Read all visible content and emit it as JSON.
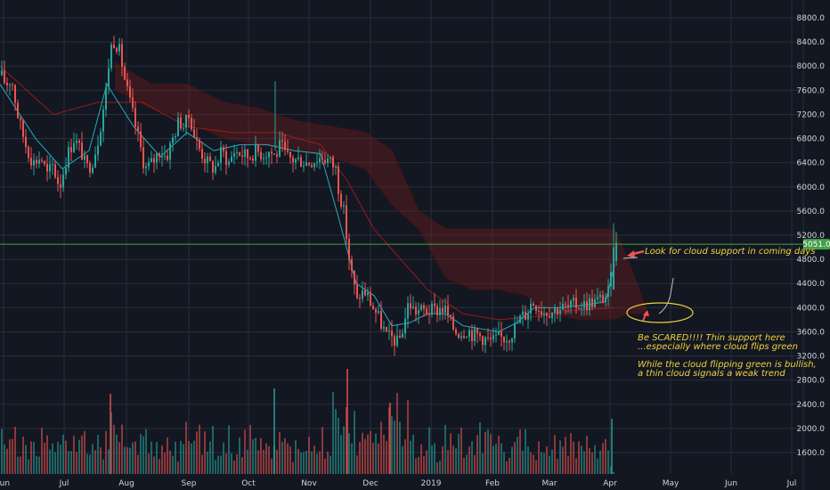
{
  "chart_data": {
    "type": "candlestick",
    "title": "",
    "grid": true,
    "colors": {
      "background": "#131722",
      "grid": "#2a2e39",
      "up": "#26a69a",
      "down": "#ef5350",
      "conversion_line": "#26c6da",
      "base_line": "#b71c1c",
      "cloud_bearish": "#7f1d1d",
      "cloud_bullish": "#1b5e20",
      "price_line": "#43a047",
      "annotation": "#f0d23c",
      "arrow": "#ef5350"
    },
    "y_axis": {
      "ticks": [
        "8800.0",
        "8400.0",
        "8000.0",
        "7600.0",
        "7200.0",
        "6800.0",
        "6400.0",
        "6000.0",
        "5600.0",
        "5200.0",
        "4800.0",
        "4400.0",
        "4000.0",
        "3600.0",
        "3200.0",
        "2800.0",
        "2400.0",
        "2000.0",
        "1600.0"
      ],
      "range": [
        1350,
        9050
      ]
    },
    "x_axis": {
      "labels": [
        "Jun",
        "Jul",
        "Aug",
        "Sep",
        "Oct",
        "Nov",
        "Dec",
        "2019",
        "Feb",
        "Mar",
        "Apr",
        "May",
        "Jun",
        "Jul"
      ]
    },
    "current_price": {
      "label": "5051.0",
      "value": 5051
    },
    "price_path": [
      [
        0,
        7850
      ],
      [
        6,
        7700
      ],
      [
        12,
        7800
      ],
      [
        20,
        7100
      ],
      [
        28,
        6700
      ],
      [
        36,
        6400
      ],
      [
        45,
        6500
      ],
      [
        52,
        6200
      ],
      [
        58,
        6350
      ],
      [
        66,
        6000
      ],
      [
        74,
        6500
      ],
      [
        82,
        6800
      ],
      [
        90,
        6600
      ],
      [
        96,
        6300
      ],
      [
        102,
        6400
      ],
      [
        108,
        6700
      ],
      [
        114,
        7200
      ],
      [
        118,
        7600
      ],
      [
        123,
        8300
      ],
      [
        128,
        8450
      ],
      [
        134,
        8200
      ],
      [
        140,
        7700
      ],
      [
        148,
        7200
      ],
      [
        156,
        6700
      ],
      [
        162,
        6300
      ],
      [
        170,
        6400
      ],
      [
        178,
        6600
      ],
      [
        186,
        6500
      ],
      [
        194,
        6850
      ],
      [
        200,
        7100
      ],
      [
        206,
        7000
      ],
      [
        212,
        7200
      ],
      [
        218,
        6800
      ],
      [
        224,
        6600
      ],
      [
        232,
        6400
      ],
      [
        240,
        6300
      ],
      [
        248,
        6600
      ],
      [
        256,
        6400
      ],
      [
        262,
        6600
      ],
      [
        270,
        6550
      ],
      [
        278,
        6500
      ],
      [
        286,
        6600
      ],
      [
        294,
        6550
      ],
      [
        302,
        6600
      ],
      [
        308,
        6500
      ],
      [
        314,
        6700
      ],
      [
        320,
        6500
      ],
      [
        328,
        6450
      ],
      [
        336,
        6450
      ],
      [
        344,
        6400
      ],
      [
        352,
        6450
      ],
      [
        360,
        6500
      ],
      [
        368,
        6450
      ],
      [
        376,
        6300
      ],
      [
        380,
        5900
      ],
      [
        384,
        5700
      ],
      [
        388,
        5200
      ],
      [
        392,
        4700
      ],
      [
        396,
        4400
      ],
      [
        400,
        4100
      ],
      [
        404,
        4250
      ],
      [
        410,
        4250
      ],
      [
        416,
        4050
      ],
      [
        422,
        3900
      ],
      [
        428,
        3700
      ],
      [
        434,
        3500
      ],
      [
        440,
        3500
      ],
      [
        446,
        3400
      ],
      [
        452,
        3700
      ],
      [
        458,
        4100
      ],
      [
        464,
        3950
      ],
      [
        470,
        3950
      ],
      [
        476,
        3950
      ],
      [
        482,
        3950
      ],
      [
        488,
        3950
      ],
      [
        494,
        4000
      ],
      [
        500,
        3950
      ],
      [
        506,
        3700
      ],
      [
        512,
        3600
      ],
      [
        518,
        3600
      ],
      [
        524,
        3650
      ],
      [
        530,
        3550
      ],
      [
        536,
        3550
      ],
      [
        542,
        3500
      ],
      [
        548,
        3450
      ],
      [
        554,
        3450
      ],
      [
        560,
        3500
      ],
      [
        566,
        3500
      ],
      [
        572,
        3550
      ],
      [
        578,
        3700
      ],
      [
        584,
        3850
      ],
      [
        590,
        3900
      ],
      [
        596,
        4100
      ],
      [
        602,
        4050
      ],
      [
        608,
        3950
      ],
      [
        614,
        3950
      ],
      [
        620,
        3950
      ],
      [
        626,
        4000
      ],
      [
        632,
        4000
      ],
      [
        638,
        4000
      ],
      [
        644,
        4050
      ],
      [
        650,
        4050
      ],
      [
        656,
        4050
      ],
      [
        662,
        4100
      ],
      [
        668,
        4100
      ],
      [
        674,
        4150
      ],
      [
        680,
        4200
      ],
      [
        684,
        4300
      ],
      [
        687,
        4800
      ],
      [
        690,
        5000
      ],
      [
        693,
        5050
      ]
    ],
    "conversion_path": [
      [
        0,
        7700
      ],
      [
        40,
        6800
      ],
      [
        70,
        6300
      ],
      [
        100,
        6600
      ],
      [
        120,
        7700
      ],
      [
        150,
        7000
      ],
      [
        180,
        6500
      ],
      [
        210,
        6900
      ],
      [
        240,
        6600
      ],
      [
        270,
        6700
      ],
      [
        300,
        6700
      ],
      [
        330,
        6600
      ],
      [
        360,
        6550
      ],
      [
        380,
        5500
      ],
      [
        400,
        4400
      ],
      [
        420,
        4200
      ],
      [
        440,
        3700
      ],
      [
        460,
        3750
      ],
      [
        480,
        3900
      ],
      [
        500,
        3900
      ],
      [
        520,
        3700
      ],
      [
        540,
        3650
      ],
      [
        560,
        3600
      ],
      [
        580,
        3750
      ],
      [
        600,
        4000
      ],
      [
        630,
        4000
      ],
      [
        660,
        4050
      ],
      [
        680,
        4100
      ],
      [
        690,
        4700
      ]
    ],
    "base_path": [
      [
        0,
        8000
      ],
      [
        60,
        7200
      ],
      [
        110,
        7400
      ],
      [
        160,
        7400
      ],
      [
        210,
        7000
      ],
      [
        260,
        6900
      ],
      [
        310,
        6900
      ],
      [
        360,
        6700
      ],
      [
        390,
        6100
      ],
      [
        420,
        5300
      ],
      [
        450,
        4800
      ],
      [
        480,
        4300
      ],
      [
        520,
        3900
      ],
      [
        560,
        3800
      ],
      [
        600,
        3850
      ],
      [
        640,
        3950
      ],
      [
        690,
        4000
      ]
    ],
    "cloud": {
      "x": [
        130,
        170,
        210,
        250,
        290,
        330,
        370,
        410,
        440,
        470,
        500,
        530,
        560,
        590,
        620,
        650,
        690,
        705,
        715,
        725
      ],
      "upper": [
        8050,
        7700,
        7700,
        7400,
        7300,
        7100,
        7000,
        6900,
        6600,
        5600,
        5300,
        5300,
        5300,
        5300,
        5300,
        5300,
        5300,
        4800,
        4400,
        4000
      ],
      "lower": [
        7600,
        7300,
        7100,
        6800,
        6700,
        6600,
        6500,
        6300,
        5700,
        5300,
        4500,
        4300,
        4300,
        4200,
        3900,
        3800,
        3800,
        3900,
        3900,
        3900
      ]
    },
    "volume_bars": {
      "count": 230,
      "ymax": 3300
    },
    "annotations": [
      {
        "lines": [
          "Look for cloud support in coming days"
        ]
      },
      {
        "lines": [
          "Be SCARED!!!! Thin support here",
          "...especially where cloud flips green"
        ]
      },
      {
        "lines": [
          "While the cloud flipping green is bullish,",
          "a thin cloud signals a weak trend"
        ]
      }
    ]
  }
}
